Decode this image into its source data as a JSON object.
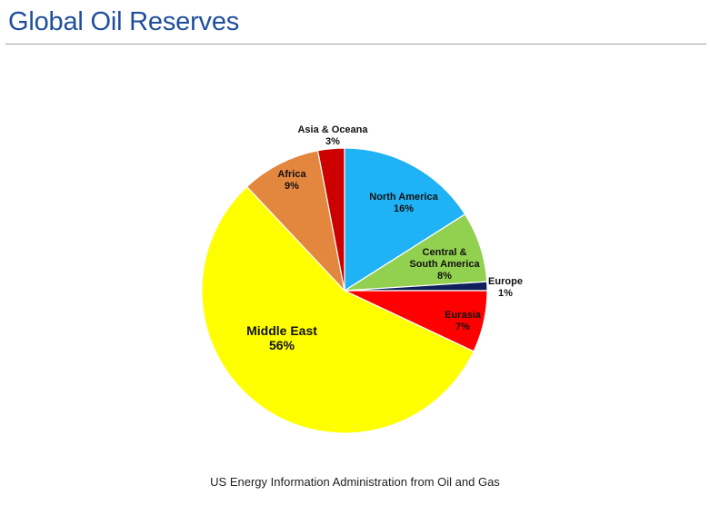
{
  "header": {
    "title": "Global Oil Reserves"
  },
  "source": "US Energy Information Administration from Oil and Gas",
  "chart_data": {
    "type": "pie",
    "title": "",
    "slices": [
      {
        "name": "North America",
        "value": 16,
        "label": "16%",
        "color": "#1fb2f5"
      },
      {
        "name": "Central & South America",
        "value": 8,
        "label": "8%",
        "color": "#92d050"
      },
      {
        "name": "Europe",
        "value": 1,
        "label": "1%",
        "color": "#0f1f5c"
      },
      {
        "name": "Eurasia",
        "value": 7,
        "label": "7%",
        "color": "#ff0000"
      },
      {
        "name": "Middle East",
        "value": 56,
        "label": "56%",
        "color": "#ffff00"
      },
      {
        "name": "Africa",
        "value": 9,
        "label": "9%",
        "color": "#e3873e"
      },
      {
        "name": "Asia & Oceana",
        "value": 3,
        "label": "3%",
        "color": "#cc0000"
      }
    ],
    "start_angle_deg": 0,
    "direction": "clockwise",
    "legend": "none",
    "labels": "on-slice"
  }
}
